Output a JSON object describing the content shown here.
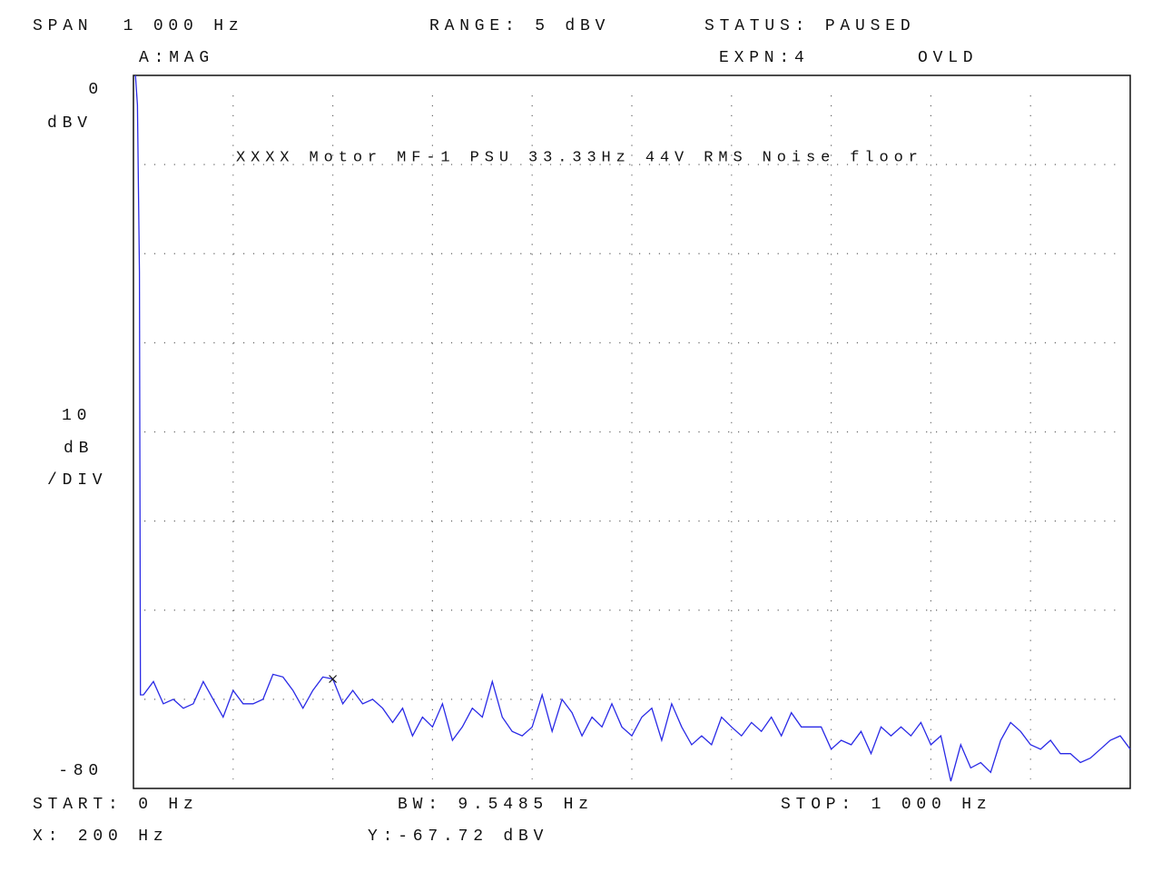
{
  "chart_data": {
    "type": "line",
    "title": "XXXX Motor MF-1 PSU 33.33Hz 44V RMS Noise floor",
    "header": {
      "span": "SPAN  1 000 Hz",
      "range": "RANGE: 5 dBV",
      "status": "STATUS: PAUSED",
      "trace": "A:MAG",
      "expansion": "EXPN:4",
      "overload": "OVLD"
    },
    "y_unit": "dBV",
    "scale_label": [
      "10",
      "dB",
      "/DIV"
    ],
    "footer": {
      "start": "START: 0 Hz",
      "bw": "BW: 9.5485 Hz",
      "stop": "STOP: 1 000 Hz"
    },
    "marker": {
      "x": 200,
      "y": -67.72,
      "x_label": "X: 200 Hz",
      "y_label": "Y:-67.72 dBV"
    },
    "x": [
      2,
      4,
      6,
      7,
      10,
      20,
      30,
      40,
      50,
      60,
      70,
      80,
      90,
      100,
      110,
      120,
      130,
      140,
      150,
      160,
      170,
      180,
      190,
      200,
      210,
      220,
      230,
      240,
      250,
      260,
      270,
      280,
      290,
      300,
      310,
      320,
      330,
      340,
      350,
      360,
      370,
      380,
      390,
      400,
      410,
      420,
      430,
      440,
      450,
      460,
      470,
      480,
      490,
      500,
      510,
      520,
      530,
      540,
      550,
      560,
      570,
      580,
      590,
      600,
      610,
      620,
      630,
      640,
      650,
      660,
      670,
      680,
      690,
      700,
      710,
      720,
      730,
      740,
      750,
      760,
      770,
      780,
      790,
      800,
      810,
      820,
      830,
      840,
      850,
      860,
      870,
      880,
      890,
      900,
      910,
      920,
      930,
      940,
      950,
      960,
      970,
      980,
      990,
      1000
    ],
    "series": [
      {
        "color": "#2a2ae6",
        "values": [
          0,
          -3.3,
          -22.1,
          -69.5,
          -69.5,
          -68.0,
          -70.5,
          -70.0,
          -71.0,
          -70.5,
          -68.0,
          -70.0,
          -72.0,
          -69.0,
          -70.5,
          -70.5,
          -70.0,
          -67.2,
          -67.5,
          -69.0,
          -71.0,
          -69.0,
          -67.5,
          -67.72,
          -70.5,
          -69.0,
          -70.5,
          -70.0,
          -71.0,
          -72.6,
          -71.0,
          -74.1,
          -72.0,
          -73.1,
          -70.5,
          -74.6,
          -73.1,
          -71.0,
          -72.0,
          -68.0,
          -72.0,
          -73.6,
          -74.1,
          -73.1,
          -69.5,
          -73.6,
          -70.0,
          -71.5,
          -74.1,
          -72.0,
          -73.1,
          -70.5,
          -73.1,
          -74.1,
          -72.0,
          -71.0,
          -74.6,
          -70.5,
          -73.1,
          -75.1,
          -74.1,
          -75.1,
          -72.0,
          -73.1,
          -74.1,
          -72.6,
          -73.6,
          -72.0,
          -74.1,
          -71.5,
          -73.1,
          -73.1,
          -73.1,
          -75.6,
          -74.6,
          -75.1,
          -73.6,
          -76.1,
          -73.1,
          -74.1,
          -73.1,
          -74.1,
          -72.6,
          -75.1,
          -74.1,
          -79.2,
          -75.1,
          -77.7,
          -77.1,
          -78.2,
          -74.6,
          -72.6,
          -73.6,
          -75.1,
          -75.6,
          -74.6,
          -76.1,
          -76.1,
          -77.1,
          -76.6,
          -75.6,
          -74.6,
          -74.1,
          -75.6
        ]
      }
    ],
    "xlim": [
      0,
      1000
    ],
    "ylim": [
      -80,
      0
    ],
    "xticks": [
      0,
      100,
      200,
      300,
      400,
      500,
      600,
      700,
      800,
      900,
      1000
    ],
    "yticks": [
      0,
      -10,
      -20,
      -30,
      -40,
      -50,
      -60,
      -70,
      -80
    ],
    "grid": true
  }
}
